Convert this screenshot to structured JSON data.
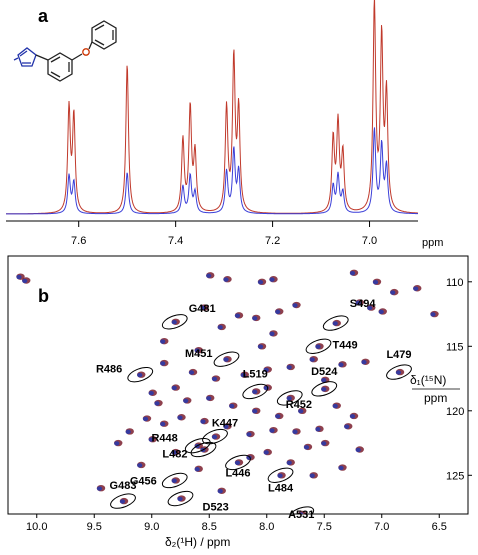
{
  "panel_a": {
    "label": "a",
    "axis_unit": "ppm",
    "ticks": [
      "7.6",
      "7.4",
      "7.2",
      "7.0"
    ]
  },
  "panel_b": {
    "label": "b",
    "x_ticks": [
      "10.0",
      "9.5",
      "9.0",
      "8.5",
      "8.0",
      "7.5",
      "7.0",
      "6.5"
    ],
    "y_ticks": [
      "110",
      "115",
      "120",
      "125"
    ],
    "x_label": "δ₂(¹H) / ppm",
    "y_label_top": "δ₁(¹⁵N)",
    "y_label_bottom": "ppm",
    "residues": [
      "G481",
      "S494",
      "T449",
      "M451",
      "R486",
      "L519",
      "D524",
      "L479",
      "R452",
      "K447",
      "R448",
      "L482",
      "L446",
      "G456",
      "L484",
      "G483",
      "D523",
      "A531"
    ]
  },
  "chart_data": [
    {
      "type": "line",
      "panel": "a",
      "xlabel": "ppm",
      "xlim": [
        7.75,
        6.9
      ],
      "x_reversed": true,
      "series": [
        {
          "color": "#c0392b",
          "peaks_x": [
            7.62,
            7.61,
            7.5,
            7.385,
            7.37,
            7.36,
            7.295,
            7.28,
            7.27,
            7.075,
            7.065,
            7.055,
            6.99,
            6.975,
            6.965
          ],
          "peaks_y": [
            0.5,
            0.46,
            0.72,
            0.35,
            0.5,
            0.28,
            0.5,
            0.73,
            0.48,
            0.35,
            0.42,
            0.28,
            1.0,
            0.82,
            0.55
          ]
        },
        {
          "color": "#3b3fd8",
          "peaks_x": [
            7.62,
            7.61,
            7.5,
            7.385,
            7.37,
            7.36,
            7.295,
            7.28,
            7.27,
            7.075,
            7.065,
            7.055,
            6.99,
            6.975,
            6.965
          ],
          "peaks_y": [
            0.18,
            0.15,
            0.2,
            0.13,
            0.18,
            0.1,
            0.2,
            0.3,
            0.2,
            0.13,
            0.18,
            0.1,
            0.4,
            0.32,
            0.22
          ]
        }
      ]
    },
    {
      "type": "scatter",
      "panel": "b",
      "xlabel": "δ₂(¹H) / ppm",
      "ylabel": "δ₁(¹⁵N) / ppm",
      "xlim": [
        10.25,
        6.25
      ],
      "ylim": [
        108,
        128
      ],
      "x_reversed": true,
      "y_reversed": true,
      "labeled_peaks": [
        {
          "label": "G481",
          "x": 8.8,
          "y": 113.1
        },
        {
          "label": "S494",
          "x": 7.4,
          "y": 113.2
        },
        {
          "label": "T449",
          "x": 7.55,
          "y": 115.0
        },
        {
          "label": "M451",
          "x": 8.35,
          "y": 116.0
        },
        {
          "label": "R486",
          "x": 9.1,
          "y": 117.2
        },
        {
          "label": "L519",
          "x": 8.1,
          "y": 118.5
        },
        {
          "label": "D524",
          "x": 7.5,
          "y": 118.3
        },
        {
          "label": "L479",
          "x": 6.85,
          "y": 117.0
        },
        {
          "label": "R452",
          "x": 7.8,
          "y": 119.0
        },
        {
          "label": "K447",
          "x": 8.45,
          "y": 122.0
        },
        {
          "label": "R448",
          "x": 8.6,
          "y": 122.7
        },
        {
          "label": "L482",
          "x": 8.55,
          "y": 123.0
        },
        {
          "label": "L446",
          "x": 8.25,
          "y": 124.0
        },
        {
          "label": "G456",
          "x": 8.8,
          "y": 125.4
        },
        {
          "label": "L484",
          "x": 7.88,
          "y": 125.0
        },
        {
          "label": "G483",
          "x": 9.25,
          "y": 127.0
        },
        {
          "label": "D523",
          "x": 8.75,
          "y": 126.8
        },
        {
          "label": "A531",
          "x": 7.7,
          "y": 128.0
        }
      ],
      "unlabeled_peaks": [
        [
          10.15,
          109.6
        ],
        [
          10.1,
          109.9
        ],
        [
          8.5,
          109.5
        ],
        [
          8.35,
          109.8
        ],
        [
          8.05,
          110.0
        ],
        [
          7.95,
          109.8
        ],
        [
          7.25,
          109.3
        ],
        [
          7.05,
          110.0
        ],
        [
          6.9,
          110.8
        ],
        [
          6.7,
          110.5
        ],
        [
          6.55,
          112.5
        ],
        [
          7.1,
          112.0
        ],
        [
          7.0,
          112.3
        ],
        [
          7.2,
          111.6
        ],
        [
          7.75,
          111.8
        ],
        [
          7.9,
          112.3
        ],
        [
          8.1,
          112.8
        ],
        [
          8.25,
          112.6
        ],
        [
          8.55,
          112.0
        ],
        [
          8.4,
          113.5
        ],
        [
          7.95,
          114.0
        ],
        [
          8.05,
          115.0
        ],
        [
          8.6,
          115.3
        ],
        [
          8.9,
          114.6
        ],
        [
          7.6,
          116.0
        ],
        [
          7.35,
          116.4
        ],
        [
          7.15,
          116.2
        ],
        [
          7.8,
          116.6
        ],
        [
          8.0,
          116.8
        ],
        [
          8.2,
          117.2
        ],
        [
          8.45,
          117.5
        ],
        [
          8.65,
          117.0
        ],
        [
          8.8,
          118.2
        ],
        [
          9.0,
          118.6
        ],
        [
          8.95,
          119.4
        ],
        [
          8.7,
          119.2
        ],
        [
          8.5,
          119.0
        ],
        [
          8.3,
          119.6
        ],
        [
          8.1,
          120.0
        ],
        [
          7.9,
          120.4
        ],
        [
          7.7,
          120.0
        ],
        [
          7.4,
          119.6
        ],
        [
          7.25,
          120.4
        ],
        [
          7.3,
          121.2
        ],
        [
          7.55,
          121.4
        ],
        [
          7.75,
          121.6
        ],
        [
          7.95,
          121.5
        ],
        [
          8.15,
          121.8
        ],
        [
          8.35,
          121.2
        ],
        [
          8.55,
          120.8
        ],
        [
          8.75,
          120.5
        ],
        [
          8.9,
          121.0
        ],
        [
          9.05,
          120.6
        ],
        [
          9.2,
          121.6
        ],
        [
          9.0,
          122.2
        ],
        [
          8.8,
          123.2
        ],
        [
          7.65,
          122.8
        ],
        [
          7.5,
          122.5
        ],
        [
          7.2,
          123.0
        ],
        [
          8.0,
          123.2
        ],
        [
          8.15,
          123.6
        ],
        [
          7.8,
          124.0
        ],
        [
          8.6,
          124.5
        ],
        [
          9.1,
          124.2
        ],
        [
          7.6,
          125.0
        ],
        [
          7.35,
          124.4
        ],
        [
          8.4,
          126.2
        ],
        [
          9.45,
          126.0
        ],
        [
          9.3,
          122.5
        ],
        [
          8.9,
          116.3
        ],
        [
          7.5,
          117.6
        ],
        [
          8.0,
          118.2
        ]
      ]
    }
  ]
}
